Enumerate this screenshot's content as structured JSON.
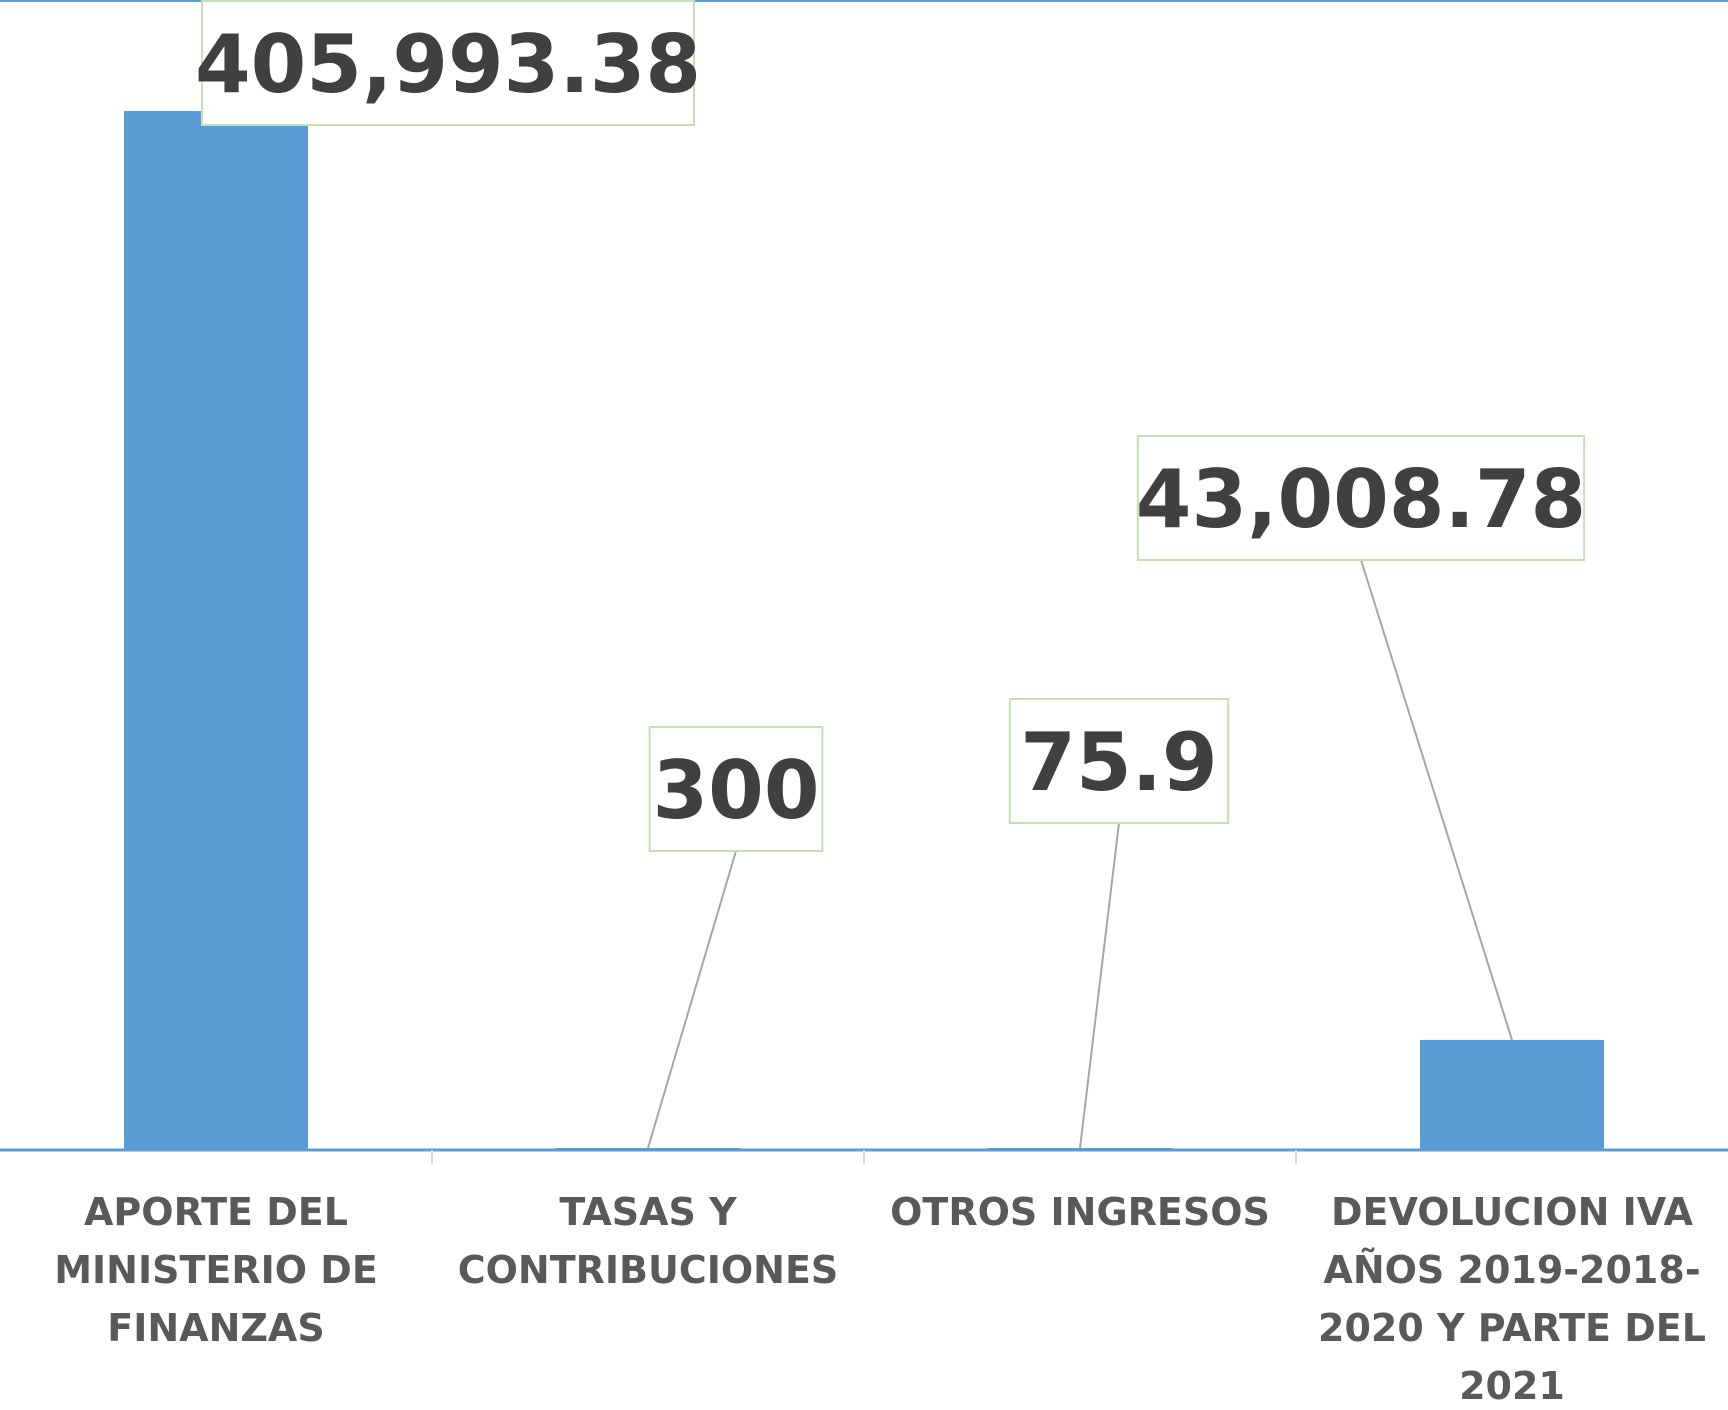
{
  "chart_data": {
    "type": "bar",
    "categories": [
      [
        "APORTE DEL",
        "MINISTERIO DE",
        "FINANZAS"
      ],
      [
        "TASAS Y",
        "CONTRIBUCIONES"
      ],
      [
        "OTROS INGRESOS"
      ],
      [
        "DEVOLUCION  IVA",
        "AÑOS  2019-2018-",
        "2020 Y PARTE DEL",
        "2021"
      ]
    ],
    "values": [
      405993.38,
      300,
      75.9,
      43008.78
    ],
    "data_labels": [
      "405,993.38",
      "300",
      "75.9",
      "43,008.78"
    ],
    "ylim": [
      0,
      405993.38
    ],
    "grid": false,
    "legend": "none",
    "colors": {
      "bar": "#5b9bd5",
      "axis": "#5b9bd5",
      "label_border": "#c5e0b4",
      "leader_line": "#a6a6a6",
      "data_label_text": "#404040",
      "category_text": "#595959"
    }
  }
}
